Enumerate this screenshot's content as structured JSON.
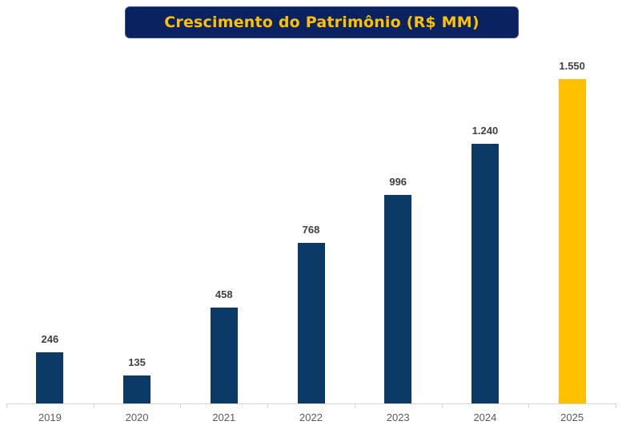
{
  "title": "Crescimento do Patrimônio (R$ MM)",
  "colors": {
    "title_bg": "#0b2260",
    "title_text": "#ffc000",
    "bar_primary": "#0b3a66",
    "bar_highlight": "#ffc000"
  },
  "chart_data": {
    "type": "bar",
    "title": "Crescimento do Patrimônio (R$ MM)",
    "xlabel": "",
    "ylabel": "",
    "categories": [
      "2019",
      "2020",
      "2021",
      "2022",
      "2023",
      "2024",
      "2025"
    ],
    "values": [
      246,
      135,
      458,
      768,
      996,
      1240,
      1550
    ],
    "value_labels": [
      "246",
      "135",
      "458",
      "768",
      "996",
      "1.240",
      "1.550"
    ],
    "highlight_index": 6,
    "ylim": [
      0,
      1550
    ],
    "grid": false,
    "legend": "none"
  }
}
